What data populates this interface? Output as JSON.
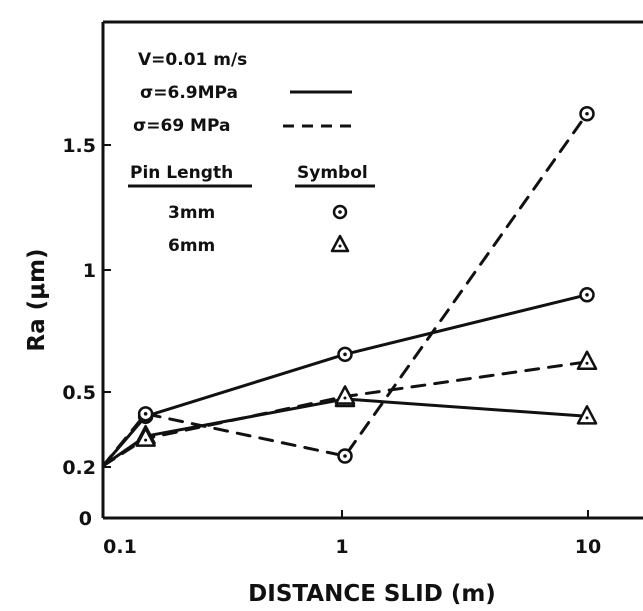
{
  "chart_data": {
    "type": "line",
    "xlabel": "DISTANCE SLID (m)",
    "ylabel": "Ra (μm)",
    "xscale": "log",
    "xlim": [
      0.1,
      13
    ],
    "ylim": [
      0,
      1.95
    ],
    "x_ticks": [
      {
        "value": 0.1,
        "label": "0.1"
      },
      {
        "value": 1,
        "label": "1"
      },
      {
        "value": 10,
        "label": "10"
      }
    ],
    "y_ticks": [
      {
        "value": 0,
        "label": "0"
      },
      {
        "value": 0.2,
        "label": "0.2"
      },
      {
        "value": 0.5,
        "label": "0.5"
      },
      {
        "value": 1,
        "label": "1"
      },
      {
        "value": 1.5,
        "label": "1.5"
      }
    ],
    "legend": {
      "velocity": "V=0.01 m/s",
      "stress_solid": "σ=6.9MPa",
      "stress_dashed": "σ=69 MPa",
      "pin_length_header": "Pin Length",
      "symbol_header": "Symbol",
      "pin_3mm": "3mm",
      "pin_6mm": "6mm"
    },
    "series": [
      {
        "stress": "6.9 MPa",
        "pin": "3mm",
        "line": "solid",
        "marker": "circle",
        "x": [
          0.1,
          0.15,
          1,
          10
        ],
        "y": [
          0.21,
          0.41,
          0.66,
          0.9
        ]
      },
      {
        "stress": "6.9 MPa",
        "pin": "6mm",
        "line": "solid",
        "marker": "triangle",
        "x": [
          0.1,
          0.15,
          1,
          10
        ],
        "y": [
          0.21,
          0.33,
          0.48,
          0.41
        ]
      },
      {
        "stress": "69 MPa",
        "pin": "3mm",
        "line": "dashed",
        "marker": "circle",
        "x": [
          0.1,
          0.15,
          1,
          10
        ],
        "y": [
          0.21,
          0.42,
          0.25,
          1.63
        ]
      },
      {
        "stress": "69 MPa",
        "pin": "6mm",
        "line": "dashed",
        "marker": "triangle",
        "x": [
          0.1,
          0.15,
          1,
          10
        ],
        "y": [
          0.21,
          0.32,
          0.49,
          0.63
        ]
      }
    ]
  }
}
